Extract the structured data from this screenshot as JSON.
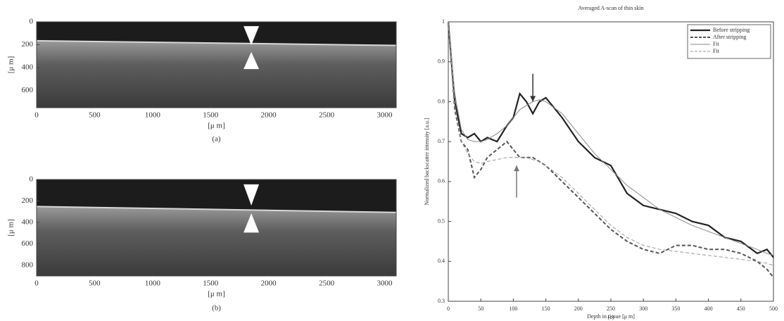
{
  "chart_data": [
    {
      "type": "image",
      "ylabel": "[μ m]",
      "xlabel": "[μ m]",
      "caption": "(a)",
      "xlim": [
        0,
        3100
      ],
      "xticks": [
        0,
        500,
        1000,
        1500,
        2000,
        2500,
        3000
      ],
      "ylim": [
        0,
        750
      ],
      "yticks": [
        0,
        200,
        400,
        600
      ],
      "yaxis_inverted": true
    },
    {
      "type": "image",
      "ylabel": "[μ m]",
      "xlabel": "[μ m]",
      "caption": "(b)",
      "xlim": [
        0,
        3100
      ],
      "xticks": [
        0,
        500,
        1000,
        1500,
        2000,
        2500,
        3000
      ],
      "ylim": [
        0,
        900
      ],
      "yticks": [
        0,
        200,
        400,
        600,
        800
      ],
      "yaxis_inverted": true
    },
    {
      "type": "line",
      "title": "Averaged A-scan of thin skin",
      "xlabel": "Depth in tissue [μ m]",
      "ylabel": "Normalized backscatter intensity [a.u.]",
      "caption": "(c)",
      "xlim": [
        0,
        500
      ],
      "xticks": [
        0,
        50,
        100,
        150,
        200,
        250,
        300,
        350,
        400,
        450,
        500
      ],
      "ylim": [
        0.3,
        1
      ],
      "yticks": [
        0.3,
        0.4,
        0.5,
        0.6,
        0.7,
        0.8,
        0.9,
        1
      ],
      "grid": false,
      "legend": "upper right",
      "x": [
        0,
        10,
        20,
        30,
        40,
        50,
        60,
        75,
        90,
        100,
        110,
        120,
        130,
        140,
        150,
        175,
        200,
        225,
        250,
        275,
        300,
        325,
        350,
        375,
        400,
        425,
        450,
        475,
        490,
        500
      ],
      "series": [
        {
          "name": "Before stripping",
          "color": "#222222",
          "dash": false,
          "width": 2.2,
          "values": [
            1.0,
            0.8,
            0.72,
            0.71,
            0.72,
            0.7,
            0.71,
            0.7,
            0.74,
            0.76,
            0.82,
            0.8,
            0.77,
            0.8,
            0.81,
            0.76,
            0.7,
            0.66,
            0.64,
            0.57,
            0.54,
            0.53,
            0.52,
            0.5,
            0.49,
            0.46,
            0.45,
            0.42,
            0.43,
            0.41
          ]
        },
        {
          "name": "After stripping",
          "color": "#555555",
          "dash": true,
          "width": 2,
          "values": [
            1.0,
            0.78,
            0.7,
            0.68,
            0.61,
            0.63,
            0.66,
            0.68,
            0.7,
            0.68,
            0.66,
            0.66,
            0.66,
            0.65,
            0.64,
            0.6,
            0.56,
            0.52,
            0.48,
            0.45,
            0.43,
            0.42,
            0.44,
            0.44,
            0.43,
            0.43,
            0.42,
            0.4,
            0.38,
            0.36
          ]
        },
        {
          "name": "Fit",
          "color": "#888888",
          "dash": false,
          "width": 1,
          "values": [
            1.0,
            0.82,
            0.73,
            0.705,
            0.7,
            0.7,
            0.705,
            0.72,
            0.74,
            0.76,
            0.78,
            0.79,
            0.8,
            0.805,
            0.8,
            0.77,
            0.72,
            0.67,
            0.63,
            0.59,
            0.56,
            0.53,
            0.51,
            0.49,
            0.475,
            0.46,
            0.445,
            0.43,
            0.42,
            0.415
          ]
        },
        {
          "name": "Fit",
          "color": "#999999",
          "dash": true,
          "width": 1,
          "values": [
            1.0,
            0.79,
            0.7,
            0.67,
            0.65,
            0.645,
            0.65,
            0.655,
            0.66,
            0.66,
            0.66,
            0.66,
            0.655,
            0.65,
            0.64,
            0.61,
            0.57,
            0.53,
            0.49,
            0.46,
            0.44,
            0.43,
            0.425,
            0.42,
            0.415,
            0.41,
            0.405,
            0.4,
            0.395,
            0.39
          ]
        }
      ]
    }
  ]
}
